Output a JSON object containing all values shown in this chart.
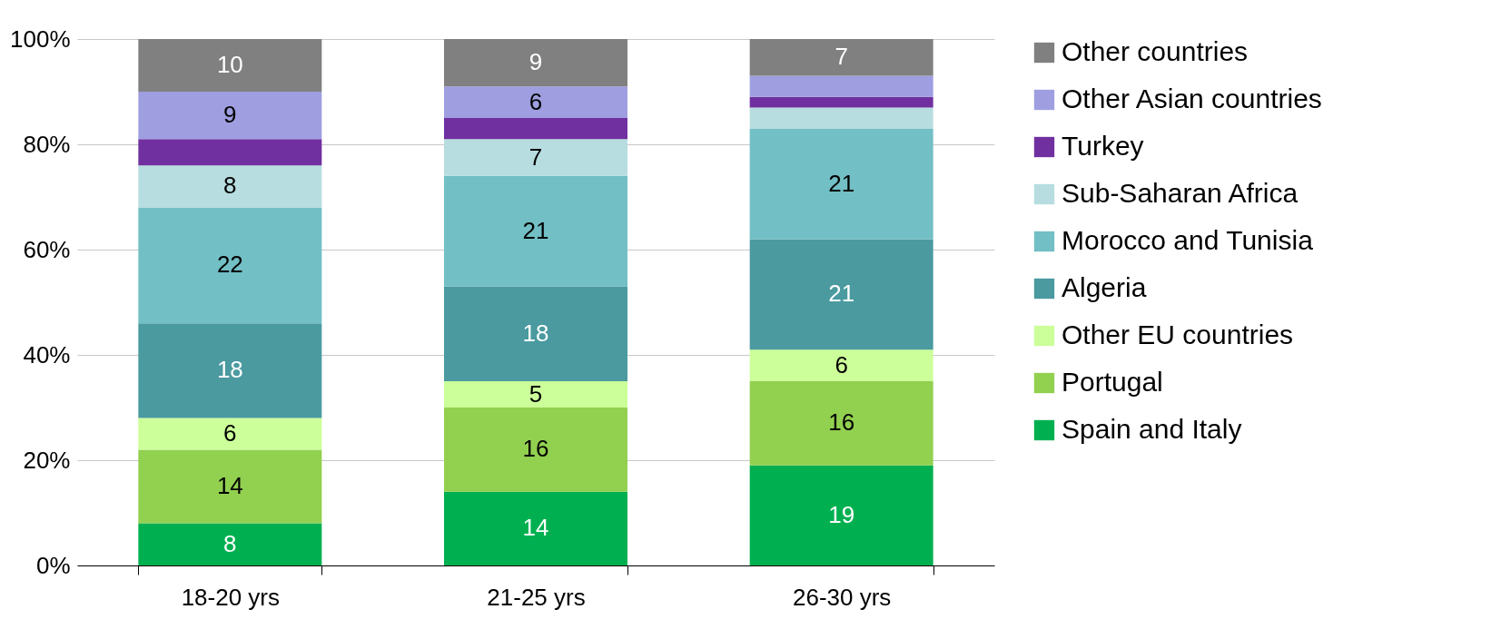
{
  "chart_data": {
    "type": "bar",
    "stacked": true,
    "categories": [
      "18-20 yrs",
      "21-25 yrs",
      "26-30 yrs"
    ],
    "series": [
      {
        "name": "Spain and Italy",
        "color": "#00b050",
        "values": [
          8,
          14,
          19
        ]
      },
      {
        "name": "Portugal",
        "color": "#92d050",
        "values": [
          14,
          16,
          16
        ]
      },
      {
        "name": "Other EU countries",
        "color": "#ccff99",
        "values": [
          6,
          5,
          6
        ]
      },
      {
        "name": "Algeria",
        "color": "#4a9aa0",
        "values": [
          18,
          18,
          21
        ]
      },
      {
        "name": "Morocco and Tunisia",
        "color": "#72bfc5",
        "values": [
          22,
          21,
          21
        ]
      },
      {
        "name": "Sub-Saharan Africa",
        "color": "#b7dde0",
        "values": [
          8,
          7,
          4
        ],
        "value_labels": [
          "8",
          "7",
          null
        ]
      },
      {
        "name": "Turkey",
        "color": "#7030a0",
        "values": [
          5,
          4,
          2
        ],
        "value_labels": [
          null,
          null,
          null
        ]
      },
      {
        "name": "Other Asian countries",
        "color": "#9e9ee0",
        "values": [
          9,
          6,
          4
        ],
        "value_labels": [
          "9",
          "6",
          null
        ]
      },
      {
        "name": "Other countries",
        "color": "#808080",
        "values": [
          10,
          9,
          7
        ]
      }
    ],
    "ylim": [
      0,
      100
    ],
    "yticks": [
      {
        "value": 0,
        "label": "0%"
      },
      {
        "value": 20,
        "label": "20%"
      },
      {
        "value": 40,
        "label": "40%"
      },
      {
        "value": 60,
        "label": "60%"
      },
      {
        "value": 80,
        "label": "80%"
      },
      {
        "value": 100,
        "label": "100%"
      }
    ],
    "grid": "y",
    "legend": "right",
    "data_labels": true
  }
}
